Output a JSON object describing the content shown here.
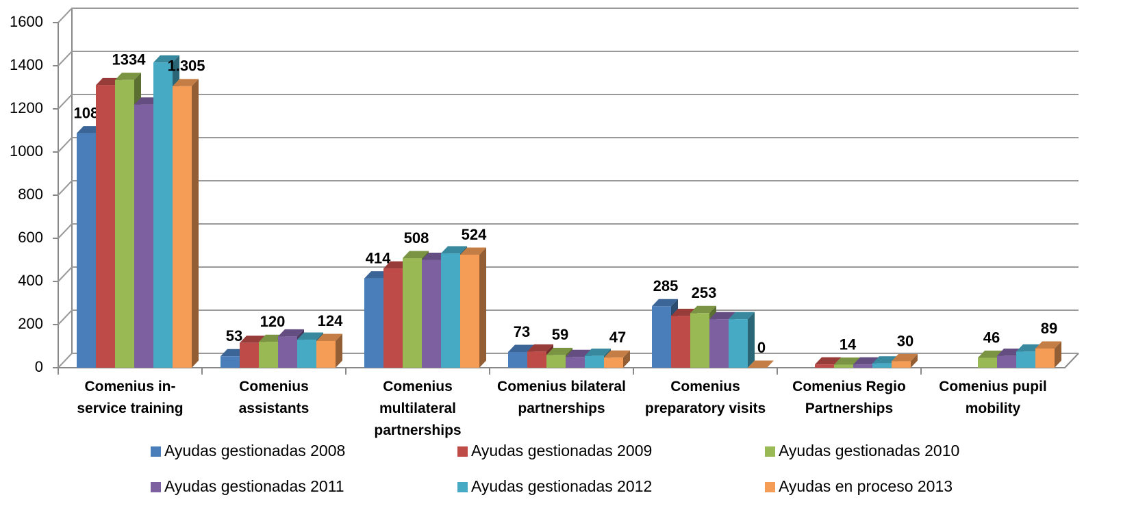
{
  "chart_data": {
    "type": "bar3d",
    "categories": [
      "Comenius in-service training",
      "Comenius assistants",
      "Comenius multilateral partnerships",
      "Comenius bilateral partnerships",
      "Comenius preparatory visits",
      "Comenius Regio Partnerships",
      "Comenius pupil mobility"
    ],
    "series": [
      {
        "name": "Ayudas gestionadas 2008",
        "color": "#4a7ebb",
        "values": [
          1087,
          53,
          414,
          73,
          285,
          null,
          null
        ],
        "value_labels": [
          "1087",
          "53",
          "414",
          "73",
          "285",
          null,
          null
        ]
      },
      {
        "name": "Ayudas gestionadas 2009",
        "color": "#be4b48",
        "values": [
          1310,
          115,
          460,
          75,
          240,
          15,
          null
        ]
      },
      {
        "name": "Ayudas gestionadas 2010",
        "color": "#98b954",
        "values": [
          1334,
          120,
          508,
          59,
          253,
          14,
          46
        ],
        "value_labels": [
          "1334",
          "120",
          "508",
          "59",
          "253",
          "14",
          "46"
        ]
      },
      {
        "name": "Ayudas gestionadas 2011",
        "color": "#7d60a0",
        "values": [
          1220,
          145,
          500,
          50,
          225,
          15,
          55
        ]
      },
      {
        "name": "Ayudas gestionadas 2012",
        "color": "#46aac5",
        "values": [
          1415,
          130,
          530,
          55,
          225,
          20,
          75
        ]
      },
      {
        "name": "Ayudas en proceso 2013",
        "color": "#f59d56",
        "values": [
          1305,
          124,
          524,
          47,
          0,
          30,
          89
        ],
        "value_labels": [
          "1.305",
          "124",
          "524",
          "47",
          "0",
          "30",
          "89"
        ]
      }
    ],
    "ylim": [
      0,
      1600
    ],
    "yticks": [
      0,
      200,
      400,
      600,
      800,
      1000,
      1200,
      1400,
      1600
    ],
    "grid": true,
    "legend": "bottom"
  }
}
